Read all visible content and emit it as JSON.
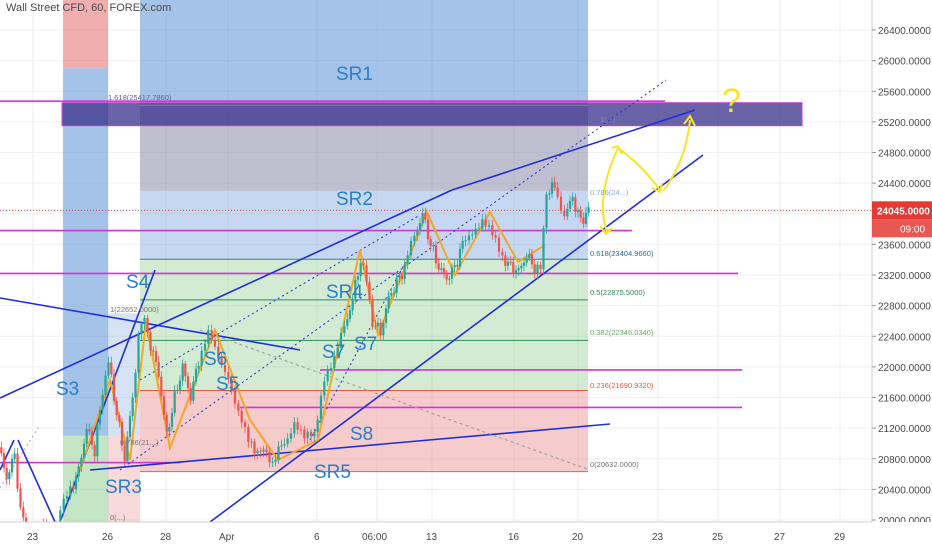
{
  "header": {
    "symbol_title": "Wall Street CFD, 60, FOREX.com"
  },
  "colors": {
    "candle_up": "#26a69a",
    "candle_down": "#ef5350",
    "trendline": "#1f2fd6",
    "magenta_level": "#d633d6",
    "orange_wave": "#f5a623",
    "yellow_annotation": "#f5e52b",
    "zone_blue": "#5b8fd6",
    "zone_red": "#e36b6b",
    "zone_green": "#7fc77f",
    "resistance_box": "#3a2f8a",
    "price_tag": "#e53935"
  },
  "price_axis": {
    "ticks": [
      "26400.0000",
      "26000.0000",
      "25600.0000",
      "25200.0000",
      "24800.0000",
      "24400.0000",
      "24000.0000",
      "23600.0000",
      "23200.0000",
      "22800.0000",
      "22400.0000",
      "22000.0000",
      "21600.0000",
      "21200.0000",
      "20800.0000",
      "20400.0000",
      "20000.0000"
    ],
    "current_price": "24045.0000",
    "countdown": "09:00"
  },
  "time_axis": {
    "ticks": [
      "23",
      "26",
      "28",
      "Apr",
      "6",
      "06:00",
      "13",
      "16",
      "20",
      "23",
      "25",
      "27",
      "29"
    ]
  },
  "zone_labels": [
    {
      "text": "SR1"
    },
    {
      "text": "SR2"
    },
    {
      "text": "SR3"
    },
    {
      "text": "SR5"
    },
    {
      "text": "S4"
    },
    {
      "text": "S3"
    },
    {
      "text": "S6"
    },
    {
      "text": "S5"
    },
    {
      "text": "S7"
    },
    {
      "text": "S8"
    },
    {
      "text": "SR4"
    },
    {
      "text": "S7"
    },
    {
      "text": "?"
    }
  ],
  "fib_labels": [
    {
      "text": "1.618(25417.7860)"
    },
    {
      "text": "0.618(23404.9660)"
    },
    {
      "text": "0.5(22875.5000)"
    },
    {
      "text": "0.382(22346.0340)"
    },
    {
      "text": "0.236(21690.9320)"
    },
    {
      "text": "0(20632.0000)"
    },
    {
      "text": "1(22652.0000)"
    },
    {
      "text": "0.786(21...)"
    },
    {
      "text": "0.786(24...)"
    },
    {
      "text": "1(...)"
    },
    {
      "text": "0(...)"
    }
  ],
  "chart_data": {
    "type": "candlestick",
    "title": "Wall Street CFD, 60, FOREX.com",
    "ylim": [
      19960,
      26700
    ],
    "x_ticks": [
      "23",
      "26",
      "28",
      "Apr",
      "6",
      "06:00",
      "13",
      "16",
      "20",
      "23",
      "25",
      "27",
      "29"
    ],
    "price_path": [
      [
        0,
        20950
      ],
      [
        8,
        20550
      ],
      [
        16,
        20850
      ],
      [
        22,
        20150
      ],
      [
        30,
        19700
      ],
      [
        38,
        19900
      ],
      [
        45,
        20000
      ],
      [
        55,
        19650
      ],
      [
        62,
        20100
      ],
      [
        72,
        20400
      ],
      [
        80,
        20650
      ],
      [
        88,
        21200
      ],
      [
        96,
        20900
      ],
      [
        104,
        21700
      ],
      [
        110,
        22050
      ],
      [
        118,
        21400
      ],
      [
        126,
        20800
      ],
      [
        134,
        21600
      ],
      [
        140,
        22400
      ],
      [
        146,
        22620
      ],
      [
        152,
        22300
      ],
      [
        160,
        21900
      ],
      [
        168,
        21100
      ],
      [
        176,
        21600
      ],
      [
        184,
        22000
      ],
      [
        192,
        21600
      ],
      [
        200,
        22100
      ],
      [
        210,
        22420
      ],
      [
        220,
        22100
      ],
      [
        230,
        21900
      ],
      [
        240,
        21400
      ],
      [
        250,
        21000
      ],
      [
        262,
        20900
      ],
      [
        274,
        20780
      ],
      [
        286,
        21000
      ],
      [
        296,
        21300
      ],
      [
        306,
        21050
      ],
      [
        316,
        21100
      ],
      [
        326,
        21900
      ],
      [
        336,
        22100
      ],
      [
        346,
        22500
      ],
      [
        354,
        22900
      ],
      [
        362,
        23400
      ],
      [
        368,
        23100
      ],
      [
        374,
        22600
      ],
      [
        382,
        22450
      ],
      [
        390,
        22900
      ],
      [
        398,
        23100
      ],
      [
        406,
        23300
      ],
      [
        416,
        23700
      ],
      [
        424,
        24000
      ],
      [
        432,
        23600
      ],
      [
        440,
        23300
      ],
      [
        448,
        23150
      ],
      [
        456,
        23300
      ],
      [
        464,
        23600
      ],
      [
        474,
        23800
      ],
      [
        484,
        23900
      ],
      [
        494,
        23700
      ],
      [
        504,
        23450
      ],
      [
        512,
        23300
      ],
      [
        520,
        23250
      ],
      [
        528,
        23450
      ],
      [
        536,
        23300
      ],
      [
        542,
        23250
      ],
      [
        548,
        24300
      ],
      [
        556,
        24350
      ],
      [
        566,
        24000
      ],
      [
        574,
        24200
      ],
      [
        582,
        23900
      ],
      [
        590,
        24045
      ]
    ],
    "levels": [
      {
        "name": "magenta",
        "value": 25470
      },
      {
        "name": "magenta",
        "value": 23780
      },
      {
        "name": "magenta",
        "value": 23220
      },
      {
        "name": "magenta",
        "value": 21960
      },
      {
        "name": "magenta",
        "value": 21470
      },
      {
        "name": "magenta",
        "value": 20750
      }
    ],
    "fib": [
      {
        "ratio": "1.618",
        "value": 25417.786
      },
      {
        "ratio": "0.618",
        "value": 23404.966
      },
      {
        "ratio": "0.5",
        "value": 22875.5
      },
      {
        "ratio": "0.382",
        "value": 22346.034
      },
      {
        "ratio": "0.236",
        "value": 21690.932
      },
      {
        "ratio": "0",
        "value": 20632.0
      }
    ],
    "resistance_box": [
      25150,
      25450
    ],
    "grid": true
  }
}
